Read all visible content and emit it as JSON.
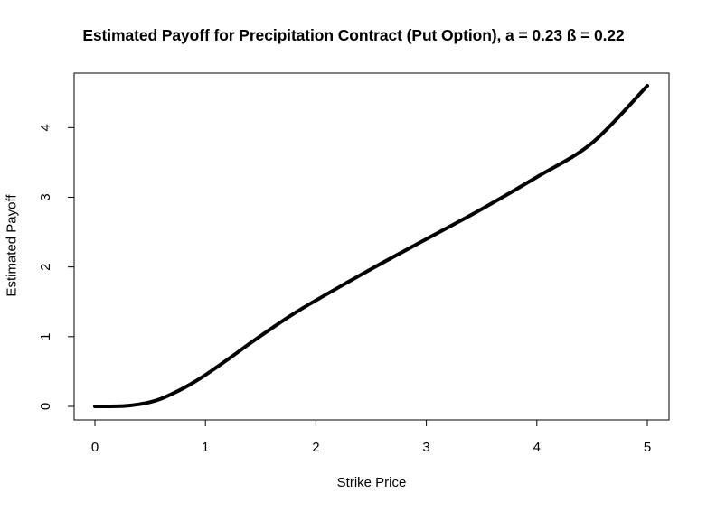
{
  "chart_data": {
    "type": "line",
    "title": "Estimated Payoff for Precipitation Contract (Put Option), a = 0.23 ß = 0.22",
    "xlabel": "Strike Price",
    "ylabel": "Estimated Payoff",
    "xlim": [
      0,
      5
    ],
    "ylim": [
      0,
      4.6
    ],
    "x_ticks": [
      "0",
      "1",
      "2",
      "3",
      "4",
      "5"
    ],
    "y_ticks": [
      "0",
      "1",
      "2",
      "3",
      "4"
    ],
    "grid": false,
    "series": [
      {
        "color": "#000000",
        "x": [
          0,
          0.1,
          0.2,
          0.3,
          0.4,
          0.5,
          0.6,
          0.7,
          0.8,
          0.9,
          1.0,
          1.2,
          1.4,
          1.6,
          1.8,
          2.0,
          2.5,
          3.0,
          3.5,
          4.0,
          4.5,
          5.0
        ],
        "values": [
          0,
          0,
          0.002,
          0.01,
          0.03,
          0.06,
          0.11,
          0.18,
          0.26,
          0.35,
          0.45,
          0.67,
          0.9,
          1.12,
          1.33,
          1.52,
          1.97,
          2.4,
          2.83,
          3.29,
          3.78,
          4.6
        ]
      }
    ]
  }
}
